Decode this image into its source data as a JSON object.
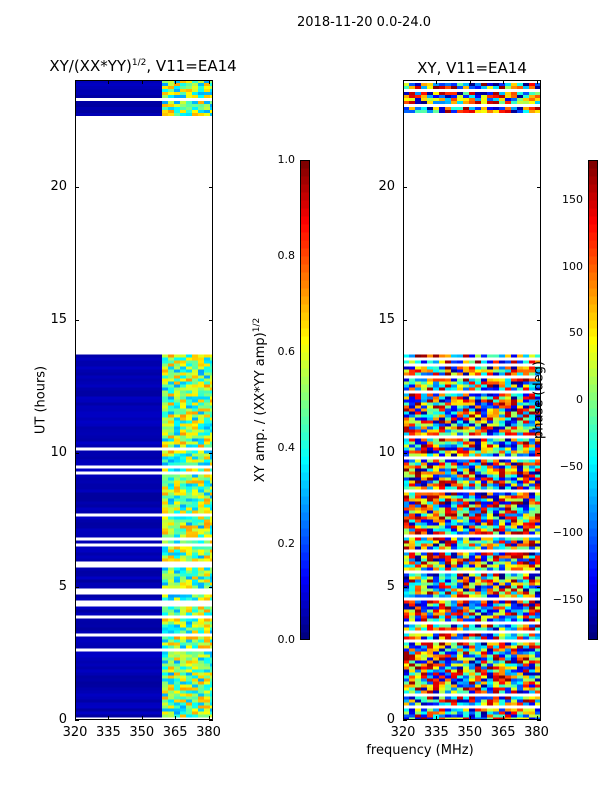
{
  "suptitle": "2018-11-20 0.0-24.0",
  "chart_data": [
    {
      "type": "heatmap",
      "title": "XY/(XX*YY)",
      "title_sup": "1/2",
      "title_suffix": ", V11=EA14",
      "xlabel": "",
      "ylabel": "UT (hours)",
      "x_range": [
        320,
        382
      ],
      "y_range": [
        0,
        24
      ],
      "x_ticks": [
        "320",
        "335",
        "350",
        "365",
        "380"
      ],
      "x_tick_values": [
        320,
        335,
        350,
        365,
        380
      ],
      "y_ticks": [
        "0",
        "5",
        "10",
        "15",
        "20"
      ],
      "y_tick_values": [
        0,
        5,
        10,
        15,
        20
      ],
      "data_blocks_hours": [
        [
          0,
          13.7
        ],
        [
          22.7,
          24
        ]
      ],
      "low_amplitude_band_mhz": [
        320,
        359
      ],
      "high_amplitude_band_mhz": [
        359,
        382
      ],
      "colorbar": {
        "label": "XY amp. / (XX*YY amp)",
        "label_sup": "1/2",
        "range": [
          0.0,
          1.0
        ],
        "ticks": [
          "0.0",
          "0.2",
          "0.4",
          "0.6",
          "0.8",
          "1.0"
        ],
        "tick_values": [
          0.0,
          0.2,
          0.4,
          0.6,
          0.8,
          1.0
        ]
      }
    },
    {
      "type": "heatmap",
      "title": "XY, V11=EA14",
      "xlabel": "frequency (MHz)",
      "ylabel": "",
      "x_range": [
        320,
        382
      ],
      "y_range": [
        0,
        24
      ],
      "x_ticks": [
        "320",
        "335",
        "350",
        "365",
        "380"
      ],
      "x_tick_values": [
        320,
        335,
        350,
        365,
        380
      ],
      "y_ticks": [
        "0",
        "5",
        "10",
        "15",
        "20"
      ],
      "y_tick_values": [
        0,
        5,
        10,
        15,
        20
      ],
      "data_blocks_hours": [
        [
          0,
          13.7
        ],
        [
          22.7,
          24
        ]
      ],
      "colorbar": {
        "label": "phase (deg)",
        "range": [
          -180,
          180
        ],
        "ticks": [
          "−150",
          "−100",
          "−50",
          "0",
          "50",
          "100",
          "150"
        ],
        "tick_values": [
          -150,
          -100,
          -50,
          0,
          50,
          100,
          150
        ]
      }
    }
  ]
}
